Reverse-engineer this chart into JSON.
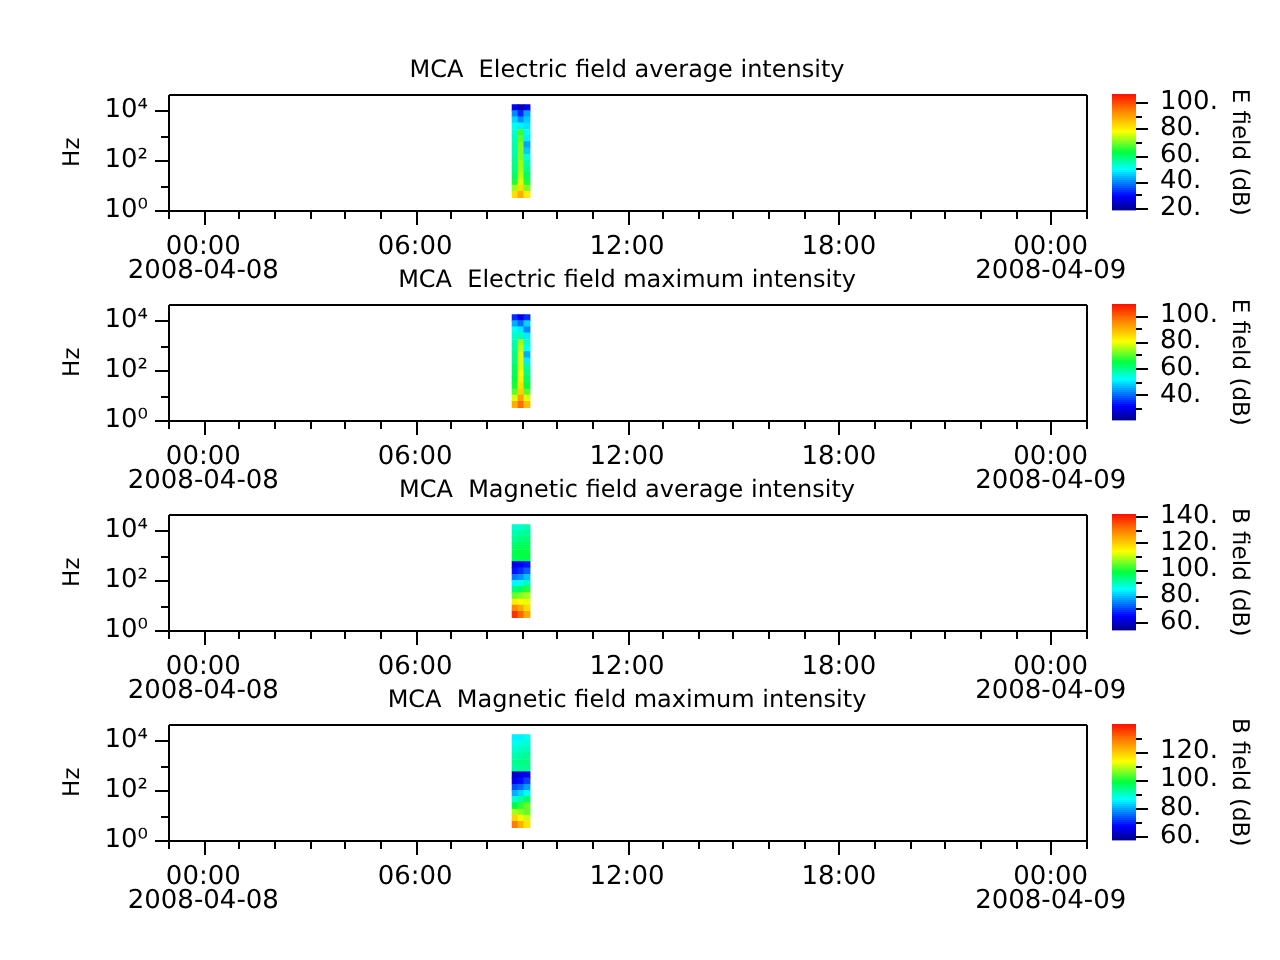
{
  "chart_data": [
    {
      "type": "scatter",
      "title": "MCA  Electric field average intensity",
      "ylabel": "Hz",
      "clabel": "E field (dB)",
      "log": "y",
      "marker": "square",
      "x": [
        "2008-04-08T08:50",
        "2008-04-08T09:00",
        "2008-04-08T09:10",
        "2008-04-08T08:50",
        "2008-04-08T09:00",
        "2008-04-08T09:10",
        "2008-04-08T08:50",
        "2008-04-08T09:00",
        "2008-04-08T09:10",
        "2008-04-08T08:50",
        "2008-04-08T09:00",
        "2008-04-08T09:10",
        "2008-04-08T08:50",
        "2008-04-08T09:00",
        "2008-04-08T09:10",
        "2008-04-08T08:50",
        "2008-04-08T09:00",
        "2008-04-08T09:10",
        "2008-04-08T08:50",
        "2008-04-08T09:00",
        "2008-04-08T09:10",
        "2008-04-08T08:50",
        "2008-04-08T09:00",
        "2008-04-08T09:10",
        "2008-04-08T08:50",
        "2008-04-08T09:00",
        "2008-04-08T09:10",
        "2008-04-08T08:50",
        "2008-04-08T09:00",
        "2008-04-08T09:10",
        "2008-04-08T08:50",
        "2008-04-08T09:00",
        "2008-04-08T09:10",
        "2008-04-08T08:50",
        "2008-04-08T09:00",
        "2008-04-08T09:10",
        "2008-04-08T08:50",
        "2008-04-08T09:00",
        "2008-04-08T09:10",
        "2008-04-08T08:50",
        "2008-04-08T09:00",
        "2008-04-08T09:10",
        "2008-04-08T08:50",
        "2008-04-08T09:00",
        "2008-04-08T09:10"
      ],
      "values": [
        13000,
        13000,
        13000,
        7500,
        7500,
        7500,
        4200,
        4200,
        4200,
        2400,
        2400,
        2400,
        1300,
        1300,
        1300,
        750,
        750,
        750,
        420,
        420,
        420,
        240,
        240,
        240,
        130,
        130,
        130,
        75,
        75,
        75,
        42,
        42,
        42,
        24,
        24,
        24,
        13,
        13,
        13,
        7.5,
        7.5,
        7.5,
        4.2,
        4.2,
        4.2
      ],
      "cvalues": [
        28,
        22,
        28,
        40,
        32,
        42,
        46,
        40,
        45,
        50,
        48,
        47,
        52,
        66,
        50,
        54,
        68,
        48,
        55,
        70,
        42,
        55,
        70,
        45,
        56,
        70,
        52,
        57,
        72,
        55,
        58,
        72,
        57,
        60,
        74,
        60,
        64,
        76,
        64,
        72,
        82,
        70,
        82,
        88,
        80
      ],
      "clim": [
        18.5,
        106
      ],
      "cticks": [
        {
          "value": 20,
          "label": "20."
        },
        {
          "value": 30,
          "label": null
        },
        {
          "value": 40,
          "label": "40."
        },
        {
          "value": 50,
          "label": null
        },
        {
          "value": 60,
          "label": "60."
        },
        {
          "value": 70,
          "label": null
        },
        {
          "value": 80,
          "label": "80."
        },
        {
          "value": 90,
          "label": null
        },
        {
          "value": 100,
          "label": "100."
        }
      ],
      "xlim": [
        "2008-04-07T23:00",
        "2008-04-09T01:00"
      ],
      "xticks": [
        {
          "value": "2008-04-07T23:00",
          "label": null
        },
        {
          "value": "2008-04-08T00:00",
          "label": "00:00\n2008-04-08"
        },
        {
          "value": "2008-04-08T01:00",
          "label": null
        },
        {
          "value": "2008-04-08T02:00",
          "label": null
        },
        {
          "value": "2008-04-08T03:00",
          "label": null
        },
        {
          "value": "2008-04-08T04:00",
          "label": null
        },
        {
          "value": "2008-04-08T05:00",
          "label": null
        },
        {
          "value": "2008-04-08T06:00",
          "label": "06:00"
        },
        {
          "value": "2008-04-08T07:00",
          "label": null
        },
        {
          "value": "2008-04-08T08:00",
          "label": null
        },
        {
          "value": "2008-04-08T09:00",
          "label": null
        },
        {
          "value": "2008-04-08T10:00",
          "label": null
        },
        {
          "value": "2008-04-08T11:00",
          "label": null
        },
        {
          "value": "2008-04-08T12:00",
          "label": "12:00"
        },
        {
          "value": "2008-04-08T13:00",
          "label": null
        },
        {
          "value": "2008-04-08T14:00",
          "label": null
        },
        {
          "value": "2008-04-08T15:00",
          "label": null
        },
        {
          "value": "2008-04-08T16:00",
          "label": null
        },
        {
          "value": "2008-04-08T17:00",
          "label": null
        },
        {
          "value": "2008-04-08T18:00",
          "label": "18:00"
        },
        {
          "value": "2008-04-08T19:00",
          "label": null
        },
        {
          "value": "2008-04-08T20:00",
          "label": null
        },
        {
          "value": "2008-04-08T21:00",
          "label": null
        },
        {
          "value": "2008-04-08T22:00",
          "label": null
        },
        {
          "value": "2008-04-08T23:00",
          "label": null
        },
        {
          "value": "2008-04-09T00:00",
          "label": "00:00\n2008-04-09"
        },
        {
          "value": "2008-04-09T01:00",
          "label": null
        }
      ],
      "ylim": [
        1,
        45000
      ],
      "yticks": [
        {
          "value": 1,
          "label": "10⁰"
        },
        {
          "value": 10,
          "label": null
        },
        {
          "value": 100,
          "label": "10²"
        },
        {
          "value": 1000,
          "label": null
        },
        {
          "value": 10000,
          "label": "10⁴"
        }
      ]
    },
    {
      "type": "scatter",
      "title": "MCA  Electric field maximum intensity",
      "ylabel": "Hz",
      "clabel": "E field (dB)",
      "log": "y",
      "marker": "square",
      "x": [
        "2008-04-08T08:50",
        "2008-04-08T09:00",
        "2008-04-08T09:10",
        "2008-04-08T08:50",
        "2008-04-08T09:00",
        "2008-04-08T09:10",
        "2008-04-08T08:50",
        "2008-04-08T09:00",
        "2008-04-08T09:10",
        "2008-04-08T08:50",
        "2008-04-08T09:00",
        "2008-04-08T09:10",
        "2008-04-08T08:50",
        "2008-04-08T09:00",
        "2008-04-08T09:10",
        "2008-04-08T08:50",
        "2008-04-08T09:00",
        "2008-04-08T09:10",
        "2008-04-08T08:50",
        "2008-04-08T09:00",
        "2008-04-08T09:10",
        "2008-04-08T08:50",
        "2008-04-08T09:00",
        "2008-04-08T09:10",
        "2008-04-08T08:50",
        "2008-04-08T09:00",
        "2008-04-08T09:10",
        "2008-04-08T08:50",
        "2008-04-08T09:00",
        "2008-04-08T09:10",
        "2008-04-08T08:50",
        "2008-04-08T09:00",
        "2008-04-08T09:10",
        "2008-04-08T08:50",
        "2008-04-08T09:00",
        "2008-04-08T09:10",
        "2008-04-08T08:50",
        "2008-04-08T09:00",
        "2008-04-08T09:10",
        "2008-04-08T08:50",
        "2008-04-08T09:00",
        "2008-04-08T09:10",
        "2008-04-08T08:50",
        "2008-04-08T09:00",
        "2008-04-08T09:10"
      ],
      "values": [
        13000,
        13000,
        13000,
        7500,
        7500,
        7500,
        4200,
        4200,
        4200,
        2400,
        2400,
        2400,
        1300,
        1300,
        1300,
        750,
        750,
        750,
        420,
        420,
        420,
        240,
        240,
        240,
        130,
        130,
        130,
        75,
        75,
        75,
        42,
        42,
        42,
        24,
        24,
        24,
        13,
        13,
        13,
        7.5,
        7.5,
        7.5,
        4.2,
        4.2,
        4.2
      ],
      "cvalues": [
        35,
        30,
        35,
        45,
        40,
        48,
        52,
        50,
        42,
        55,
        56,
        50,
        57,
        74,
        55,
        58,
        76,
        52,
        60,
        78,
        45,
        60,
        78,
        50,
        62,
        78,
        58,
        63,
        80,
        60,
        64,
        82,
        62,
        66,
        84,
        65,
        70,
        86,
        70,
        78,
        92,
        78,
        90,
        98,
        88
      ],
      "clim": [
        21,
        108
      ],
      "cticks": [
        {
          "value": 30,
          "label": null
        },
        {
          "value": 40,
          "label": "40."
        },
        {
          "value": 50,
          "label": null
        },
        {
          "value": 60,
          "label": "60."
        },
        {
          "value": 70,
          "label": null
        },
        {
          "value": 80,
          "label": "80."
        },
        {
          "value": 90,
          "label": null
        },
        {
          "value": 100,
          "label": "100."
        }
      ],
      "xlim": [
        "2008-04-07T23:00",
        "2008-04-09T01:00"
      ],
      "xticks": [
        {
          "value": "2008-04-07T23:00",
          "label": null
        },
        {
          "value": "2008-04-08T00:00",
          "label": "00:00\n2008-04-08"
        },
        {
          "value": "2008-04-08T01:00",
          "label": null
        },
        {
          "value": "2008-04-08T02:00",
          "label": null
        },
        {
          "value": "2008-04-08T03:00",
          "label": null
        },
        {
          "value": "2008-04-08T04:00",
          "label": null
        },
        {
          "value": "2008-04-08T05:00",
          "label": null
        },
        {
          "value": "2008-04-08T06:00",
          "label": "06:00"
        },
        {
          "value": "2008-04-08T07:00",
          "label": null
        },
        {
          "value": "2008-04-08T08:00",
          "label": null
        },
        {
          "value": "2008-04-08T09:00",
          "label": null
        },
        {
          "value": "2008-04-08T10:00",
          "label": null
        },
        {
          "value": "2008-04-08T11:00",
          "label": null
        },
        {
          "value": "2008-04-08T12:00",
          "label": "12:00"
        },
        {
          "value": "2008-04-08T13:00",
          "label": null
        },
        {
          "value": "2008-04-08T14:00",
          "label": null
        },
        {
          "value": "2008-04-08T15:00",
          "label": null
        },
        {
          "value": "2008-04-08T16:00",
          "label": null
        },
        {
          "value": "2008-04-08T17:00",
          "label": null
        },
        {
          "value": "2008-04-08T18:00",
          "label": "18:00"
        },
        {
          "value": "2008-04-08T19:00",
          "label": null
        },
        {
          "value": "2008-04-08T20:00",
          "label": null
        },
        {
          "value": "2008-04-08T21:00",
          "label": null
        },
        {
          "value": "2008-04-08T22:00",
          "label": null
        },
        {
          "value": "2008-04-08T23:00",
          "label": null
        },
        {
          "value": "2008-04-09T00:00",
          "label": "00:00\n2008-04-09"
        },
        {
          "value": "2008-04-09T01:00",
          "label": null
        }
      ],
      "ylim": [
        1,
        45000
      ],
      "yticks": [
        {
          "value": 1,
          "label": "10⁰"
        },
        {
          "value": 10,
          "label": null
        },
        {
          "value": 100,
          "label": "10²"
        },
        {
          "value": 1000,
          "label": null
        },
        {
          "value": 10000,
          "label": "10⁴"
        }
      ]
    },
    {
      "type": "scatter",
      "title": "MCA  Magnetic field average intensity",
      "ylabel": "Hz",
      "clabel": "B field (dB)",
      "log": "y",
      "marker": "square",
      "x": [
        "2008-04-08T08:50",
        "2008-04-08T09:00",
        "2008-04-08T09:10",
        "2008-04-08T08:50",
        "2008-04-08T09:00",
        "2008-04-08T09:10",
        "2008-04-08T08:50",
        "2008-04-08T09:00",
        "2008-04-08T09:10",
        "2008-04-08T08:50",
        "2008-04-08T09:00",
        "2008-04-08T09:10",
        "2008-04-08T08:50",
        "2008-04-08T09:00",
        "2008-04-08T09:10",
        "2008-04-08T08:50",
        "2008-04-08T09:00",
        "2008-04-08T09:10",
        "2008-04-08T08:50",
        "2008-04-08T09:00",
        "2008-04-08T09:10",
        "2008-04-08T08:50",
        "2008-04-08T09:00",
        "2008-04-08T09:10",
        "2008-04-08T08:50",
        "2008-04-08T09:00",
        "2008-04-08T09:10",
        "2008-04-08T08:50",
        "2008-04-08T09:00",
        "2008-04-08T09:10",
        "2008-04-08T08:50",
        "2008-04-08T09:00",
        "2008-04-08T09:10",
        "2008-04-08T08:50",
        "2008-04-08T09:00",
        "2008-04-08T09:10",
        "2008-04-08T08:50",
        "2008-04-08T09:00",
        "2008-04-08T09:10",
        "2008-04-08T08:50",
        "2008-04-08T09:00",
        "2008-04-08T09:10",
        "2008-04-08T08:50",
        "2008-04-08T09:00",
        "2008-04-08T09:10"
      ],
      "values": [
        13000,
        13000,
        13000,
        7500,
        7500,
        7500,
        4200,
        4200,
        4200,
        2400,
        2400,
        2400,
        1300,
        1300,
        1300,
        750,
        750,
        750,
        420,
        420,
        420,
        240,
        240,
        240,
        130,
        130,
        130,
        75,
        75,
        75,
        42,
        42,
        42,
        24,
        24,
        24,
        13,
        13,
        13,
        7.5,
        7.5,
        7.5,
        4.2,
        4.2,
        4.2
      ],
      "cvalues": [
        88,
        88,
        90,
        90,
        92,
        92,
        92,
        94,
        94,
        95,
        96,
        96,
        97,
        98,
        98,
        96,
        97,
        97,
        62,
        64,
        66,
        66,
        68,
        72,
        74,
        76,
        80,
        84,
        86,
        90,
        94,
        96,
        100,
        104,
        106,
        108,
        116,
        114,
        112,
        128,
        124,
        118,
        138,
        132,
        124
      ],
      "clim": [
        54,
        141.5
      ],
      "cticks": [
        {
          "value": 60,
          "label": "60."
        },
        {
          "value": 70,
          "label": null
        },
        {
          "value": 80,
          "label": "80."
        },
        {
          "value": 90,
          "label": null
        },
        {
          "value": 100,
          "label": "100."
        },
        {
          "value": 110,
          "label": null
        },
        {
          "value": 120,
          "label": "120."
        },
        {
          "value": 130,
          "label": null
        },
        {
          "value": 140,
          "label": "140."
        }
      ],
      "xlim": [
        "2008-04-07T23:00",
        "2008-04-09T01:00"
      ],
      "xticks": [
        {
          "value": "2008-04-07T23:00",
          "label": null
        },
        {
          "value": "2008-04-08T00:00",
          "label": "00:00\n2008-04-08"
        },
        {
          "value": "2008-04-08T01:00",
          "label": null
        },
        {
          "value": "2008-04-08T02:00",
          "label": null
        },
        {
          "value": "2008-04-08T03:00",
          "label": null
        },
        {
          "value": "2008-04-08T04:00",
          "label": null
        },
        {
          "value": "2008-04-08T05:00",
          "label": null
        },
        {
          "value": "2008-04-08T06:00",
          "label": "06:00"
        },
        {
          "value": "2008-04-08T07:00",
          "label": null
        },
        {
          "value": "2008-04-08T08:00",
          "label": null
        },
        {
          "value": "2008-04-08T09:00",
          "label": null
        },
        {
          "value": "2008-04-08T10:00",
          "label": null
        },
        {
          "value": "2008-04-08T11:00",
          "label": null
        },
        {
          "value": "2008-04-08T12:00",
          "label": "12:00"
        },
        {
          "value": "2008-04-08T13:00",
          "label": null
        },
        {
          "value": "2008-04-08T14:00",
          "label": null
        },
        {
          "value": "2008-04-08T15:00",
          "label": null
        },
        {
          "value": "2008-04-08T16:00",
          "label": null
        },
        {
          "value": "2008-04-08T17:00",
          "label": null
        },
        {
          "value": "2008-04-08T18:00",
          "label": "18:00"
        },
        {
          "value": "2008-04-08T19:00",
          "label": null
        },
        {
          "value": "2008-04-08T20:00",
          "label": null
        },
        {
          "value": "2008-04-08T21:00",
          "label": null
        },
        {
          "value": "2008-04-08T22:00",
          "label": null
        },
        {
          "value": "2008-04-08T23:00",
          "label": null
        },
        {
          "value": "2008-04-09T00:00",
          "label": "00:00\n2008-04-09"
        },
        {
          "value": "2008-04-09T01:00",
          "label": null
        }
      ],
      "ylim": [
        1,
        45000
      ],
      "yticks": [
        {
          "value": 1,
          "label": "10⁰"
        },
        {
          "value": 10,
          "label": null
        },
        {
          "value": 100,
          "label": "10²"
        },
        {
          "value": 1000,
          "label": null
        },
        {
          "value": 10000,
          "label": "10⁴"
        }
      ]
    },
    {
      "type": "scatter",
      "title": "MCA  Magnetic field maximum intensity",
      "ylabel": "Hz",
      "clabel": "B field (dB)",
      "log": "y",
      "marker": "square",
      "x": [
        "2008-04-08T08:50",
        "2008-04-08T09:00",
        "2008-04-08T09:10",
        "2008-04-08T08:50",
        "2008-04-08T09:00",
        "2008-04-08T09:10",
        "2008-04-08T08:50",
        "2008-04-08T09:00",
        "2008-04-08T09:10",
        "2008-04-08T08:50",
        "2008-04-08T09:00",
        "2008-04-08T09:10",
        "2008-04-08T08:50",
        "2008-04-08T09:00",
        "2008-04-08T09:10",
        "2008-04-08T08:50",
        "2008-04-08T09:00",
        "2008-04-08T09:10",
        "2008-04-08T08:50",
        "2008-04-08T09:00",
        "2008-04-08T09:10",
        "2008-04-08T08:50",
        "2008-04-08T09:00",
        "2008-04-08T09:10",
        "2008-04-08T08:50",
        "2008-04-08T09:00",
        "2008-04-08T09:10",
        "2008-04-08T08:50",
        "2008-04-08T09:00",
        "2008-04-08T09:10",
        "2008-04-08T08:50",
        "2008-04-08T09:00",
        "2008-04-08T09:10",
        "2008-04-08T08:50",
        "2008-04-08T09:00",
        "2008-04-08T09:10",
        "2008-04-08T08:50",
        "2008-04-08T09:00",
        "2008-04-08T09:10",
        "2008-04-08T08:50",
        "2008-04-08T09:00",
        "2008-04-08T09:10",
        "2008-04-08T08:50",
        "2008-04-08T09:00",
        "2008-04-08T09:10"
      ],
      "values": [
        13000,
        13000,
        13000,
        7500,
        7500,
        7500,
        4200,
        4200,
        4200,
        2400,
        2400,
        2400,
        1300,
        1300,
        1300,
        750,
        750,
        750,
        420,
        420,
        420,
        240,
        240,
        240,
        130,
        130,
        130,
        75,
        75,
        75,
        42,
        42,
        42,
        24,
        24,
        24,
        13,
        13,
        13,
        7.5,
        7.5,
        7.5,
        4.2,
        4.2,
        4.2
      ],
      "cvalues": [
        85,
        85,
        87,
        87,
        88,
        89,
        89,
        90,
        91,
        91,
        92,
        93,
        93,
        94,
        94,
        92,
        93,
        93,
        62,
        64,
        66,
        66,
        68,
        72,
        73,
        75,
        79,
        80,
        83,
        87,
        89,
        92,
        96,
        98,
        101,
        104,
        108,
        106,
        104,
        118,
        114,
        110,
        128,
        122,
        116
      ],
      "clim": [
        57.5,
        139
      ],
      "cticks": [
        {
          "value": 60,
          "label": "60."
        },
        {
          "value": 70,
          "label": null
        },
        {
          "value": 80,
          "label": "80."
        },
        {
          "value": 90,
          "label": null
        },
        {
          "value": 100,
          "label": "100."
        },
        {
          "value": 110,
          "label": null
        },
        {
          "value": 120,
          "label": "120."
        },
        {
          "value": 130,
          "label": null
        }
      ],
      "xlim": [
        "2008-04-07T23:00",
        "2008-04-09T01:00"
      ],
      "xticks": [
        {
          "value": "2008-04-07T23:00",
          "label": null
        },
        {
          "value": "2008-04-08T00:00",
          "label": "00:00\n2008-04-08"
        },
        {
          "value": "2008-04-08T01:00",
          "label": null
        },
        {
          "value": "2008-04-08T02:00",
          "label": null
        },
        {
          "value": "2008-04-08T03:00",
          "label": null
        },
        {
          "value": "2008-04-08T04:00",
          "label": null
        },
        {
          "value": "2008-04-08T05:00",
          "label": null
        },
        {
          "value": "2008-04-08T06:00",
          "label": "06:00"
        },
        {
          "value": "2008-04-08T07:00",
          "label": null
        },
        {
          "value": "2008-04-08T08:00",
          "label": null
        },
        {
          "value": "2008-04-08T09:00",
          "label": null
        },
        {
          "value": "2008-04-08T10:00",
          "label": null
        },
        {
          "value": "2008-04-08T11:00",
          "label": null
        },
        {
          "value": "2008-04-08T12:00",
          "label": "12:00"
        },
        {
          "value": "2008-04-08T13:00",
          "label": null
        },
        {
          "value": "2008-04-08T14:00",
          "label": null
        },
        {
          "value": "2008-04-08T15:00",
          "label": null
        },
        {
          "value": "2008-04-08T16:00",
          "label": null
        },
        {
          "value": "2008-04-08T17:00",
          "label": null
        },
        {
          "value": "2008-04-08T18:00",
          "label": "18:00"
        },
        {
          "value": "2008-04-08T19:00",
          "label": null
        },
        {
          "value": "2008-04-08T20:00",
          "label": null
        },
        {
          "value": "2008-04-08T21:00",
          "label": null
        },
        {
          "value": "2008-04-08T22:00",
          "label": null
        },
        {
          "value": "2008-04-08T23:00",
          "label": null
        },
        {
          "value": "2008-04-09T00:00",
          "label": "00:00\n2008-04-09"
        },
        {
          "value": "2008-04-09T01:00",
          "label": null
        }
      ],
      "ylim": [
        1,
        45000
      ],
      "yticks": [
        {
          "value": 1,
          "label": "10⁰"
        },
        {
          "value": 10,
          "label": null
        },
        {
          "value": 100,
          "label": "10²"
        },
        {
          "value": 1000,
          "label": null
        },
        {
          "value": 10000,
          "label": "10⁴"
        }
      ]
    }
  ]
}
